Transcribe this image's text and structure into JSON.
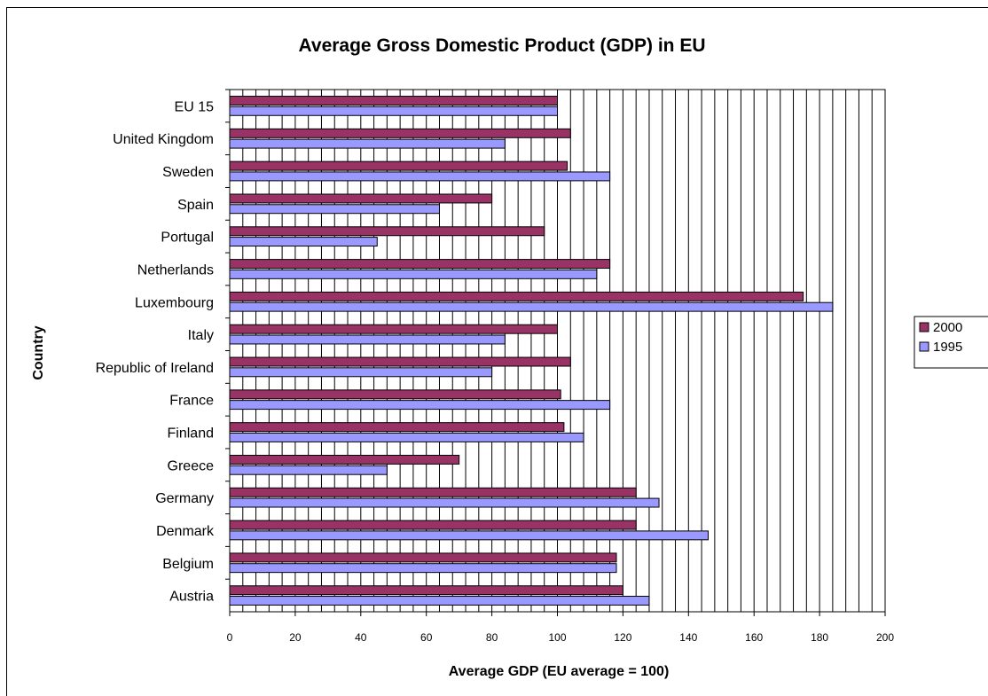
{
  "chart_data": {
    "type": "bar",
    "orientation": "horizontal",
    "title": "Average Gross Domestic Product (GDP) in EU",
    "xlabel": "Average GDP (EU average = 100)",
    "ylabel": "Country",
    "xlim": [
      0,
      200
    ],
    "xticks": [
      0,
      20,
      40,
      60,
      80,
      100,
      120,
      140,
      160,
      180,
      200
    ],
    "grid": true,
    "legend_position": "right",
    "categories": [
      "EU 15",
      "United Kingdom",
      "Sweden",
      "Spain",
      "Portugal",
      "Netherlands",
      "Luxembourg",
      "Italy",
      "Republic of Ireland",
      "France",
      "Finland",
      "Greece",
      "Germany",
      "Denmark",
      "Belgium",
      "Austria"
    ],
    "series": [
      {
        "name": "2000",
        "color": "#993366",
        "values": [
          100,
          104,
          103,
          80,
          96,
          116,
          175,
          100,
          104,
          101,
          102,
          70,
          124,
          124,
          118,
          120
        ]
      },
      {
        "name": "1995",
        "color": "#9999ff",
        "values": [
          100,
          84,
          116,
          64,
          45,
          112,
          184,
          84,
          80,
          116,
          108,
          48,
          131,
          146,
          118,
          128
        ]
      }
    ]
  }
}
